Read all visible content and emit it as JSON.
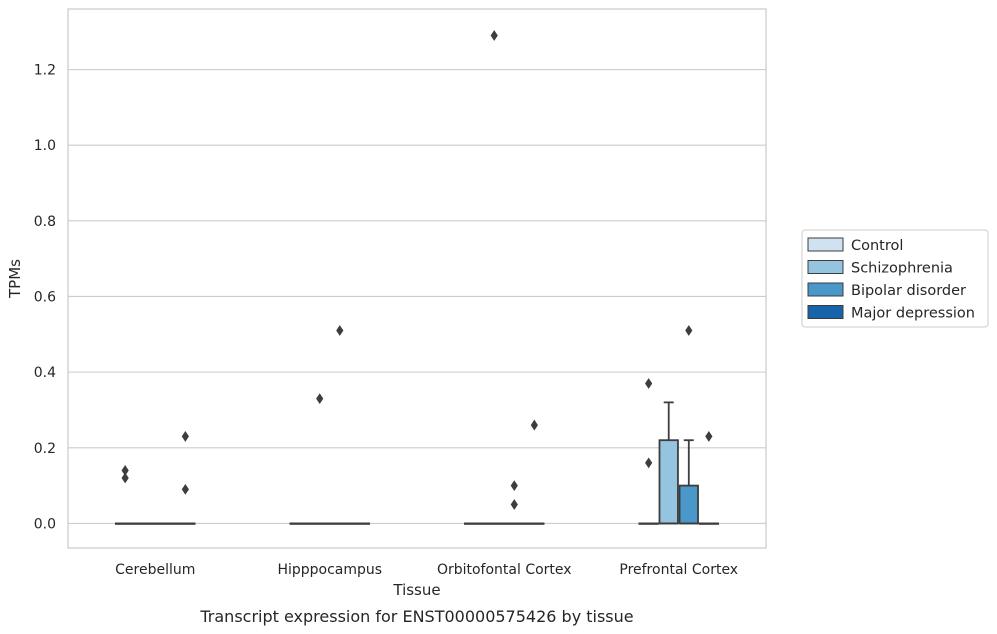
{
  "chart_data": {
    "type": "box",
    "caption": "Transcript expression for ENST00000575426 by tissue",
    "xlabel": "Tissue",
    "ylabel": "TPMs",
    "ylim": [
      -0.065,
      1.36
    ],
    "yticks": [
      0.0,
      0.2,
      0.4,
      0.6,
      0.8,
      1.0,
      1.2
    ],
    "ytick_labels": [
      "0.0",
      "0.2",
      "0.4",
      "0.6",
      "0.8",
      "1.0",
      "1.2"
    ],
    "grid": "horizontal",
    "categories": [
      "Cerebellum",
      "Hipppocampus",
      "Orbitofontal Cortex",
      "Prefrontal Cortex"
    ],
    "legend": {
      "placement": "right",
      "entries": [
        {
          "name": "Control",
          "color": "#d0e1f2"
        },
        {
          "name": "Schizophrenia",
          "color": "#94c4df"
        },
        {
          "name": "Bipolar disorder",
          "color": "#4a98c9"
        },
        {
          "name": "Major depression",
          "color": "#1764ab"
        }
      ]
    },
    "series": [
      {
        "name": "Control",
        "boxes": [
          {
            "q1": 0,
            "median": 0,
            "q3": 0,
            "whisker_low": 0,
            "whisker_high": 0,
            "outliers": [
              0.12,
              0.14
            ]
          },
          {
            "q1": 0,
            "median": 0,
            "q3": 0,
            "whisker_low": 0,
            "whisker_high": 0,
            "outliers": []
          },
          {
            "q1": 0,
            "median": 0,
            "q3": 0,
            "whisker_low": 0,
            "whisker_high": 0,
            "outliers": []
          },
          {
            "q1": 0,
            "median": 0,
            "q3": 0,
            "whisker_low": 0,
            "whisker_high": 0,
            "outliers": [
              0.16,
              0.37
            ]
          }
        ]
      },
      {
        "name": "Schizophrenia",
        "boxes": [
          {
            "q1": 0,
            "median": 0,
            "q3": 0,
            "whisker_low": 0,
            "whisker_high": 0,
            "outliers": []
          },
          {
            "q1": 0,
            "median": 0,
            "q3": 0,
            "whisker_low": 0,
            "whisker_high": 0,
            "outliers": [
              0.33
            ]
          },
          {
            "q1": 0,
            "median": 0,
            "q3": 0,
            "whisker_low": 0,
            "whisker_high": 0,
            "outliers": [
              1.29
            ]
          },
          {
            "q1": 0,
            "median": 0,
            "q3": 0.22,
            "whisker_low": 0,
            "whisker_high": 0.32,
            "outliers": []
          }
        ]
      },
      {
        "name": "Bipolar disorder",
        "boxes": [
          {
            "q1": 0,
            "median": 0,
            "q3": 0,
            "whisker_low": 0,
            "whisker_high": 0,
            "outliers": []
          },
          {
            "q1": 0,
            "median": 0,
            "q3": 0,
            "whisker_low": 0,
            "whisker_high": 0,
            "outliers": [
              0.51
            ]
          },
          {
            "q1": 0,
            "median": 0,
            "q3": 0,
            "whisker_low": 0,
            "whisker_high": 0,
            "outliers": [
              0.05,
              0.1
            ]
          },
          {
            "q1": 0,
            "median": 0,
            "q3": 0.1,
            "whisker_low": 0,
            "whisker_high": 0.22,
            "outliers": [
              0.51
            ]
          }
        ]
      },
      {
        "name": "Major depression",
        "boxes": [
          {
            "q1": 0,
            "median": 0,
            "q3": 0,
            "whisker_low": 0,
            "whisker_high": 0,
            "outliers": [
              0.09,
              0.23
            ]
          },
          {
            "q1": 0,
            "median": 0,
            "q3": 0,
            "whisker_low": 0,
            "whisker_high": 0,
            "outliers": []
          },
          {
            "q1": 0,
            "median": 0,
            "q3": 0,
            "whisker_low": 0,
            "whisker_high": 0,
            "outliers": [
              0.26
            ]
          },
          {
            "q1": 0,
            "median": 0,
            "q3": 0,
            "whisker_low": 0,
            "whisker_high": 0,
            "outliers": [
              0.23
            ]
          }
        ]
      }
    ]
  }
}
